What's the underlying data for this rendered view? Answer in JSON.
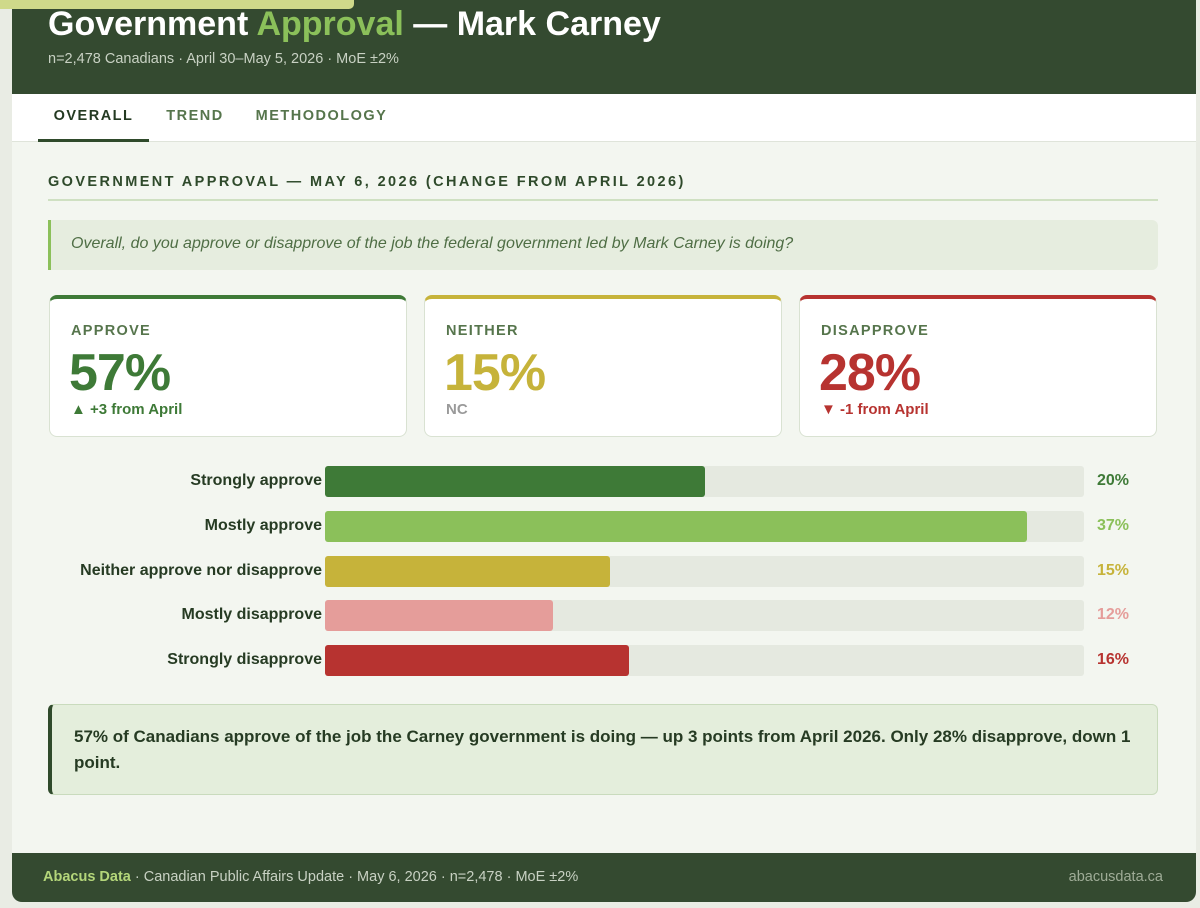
{
  "header": {
    "title_pre": "Government ",
    "title_highlight": "Approval",
    "title_post": " — Mark Carney",
    "subtitle": "n=2,478 Canadians · April 30–May 5, 2026 · MoE ±2%"
  },
  "tabs": [
    {
      "label": "OVERALL",
      "active": true
    },
    {
      "label": "TREND",
      "active": false
    },
    {
      "label": "METHODOLOGY",
      "active": false
    }
  ],
  "section_title": "GOVERNMENT APPROVAL — MAY 6, 2026 (CHANGE FROM APRIL 2026)",
  "question": "Overall, do you approve or disapprove of the job the federal government led by Mark Carney is doing?",
  "stats": [
    {
      "label": "APPROVE",
      "value": "57%",
      "change": "▲ +3 from April",
      "color": "#3e7a37",
      "change_color": "#3e7a37"
    },
    {
      "label": "NEITHER",
      "value": "15%",
      "change": "NC",
      "color": "#c6b33a",
      "change_color": "#9a9a9a"
    },
    {
      "label": "DISAPPROVE",
      "value": "28%",
      "change": "▼ -1 from April",
      "color": "#b73330",
      "change_color": "#b73330"
    }
  ],
  "chart_data": {
    "type": "bar",
    "orientation": "horizontal",
    "categories": [
      "Strongly approve",
      "Mostly approve",
      "Neither approve nor disapprove",
      "Mostly disapprove",
      "Strongly disapprove"
    ],
    "values": [
      20,
      37,
      15,
      12,
      16
    ],
    "value_labels": [
      "20%",
      "37%",
      "15%",
      "12%",
      "16%"
    ],
    "colors": [
      "#3e7a37",
      "#8bc05a",
      "#c6b33a",
      "#e59d9a",
      "#b73330"
    ],
    "label_colors": [
      "#3e7a37",
      "#8bc05a",
      "#c6b33a",
      "#e59d9a",
      "#b73330"
    ],
    "xlim": [
      0,
      40
    ],
    "grid": false,
    "title": "",
    "xlabel": "",
    "ylabel": ""
  },
  "summary": "57% of Canadians approve of the job the Carney government is doing — up 3 points from April 2026. Only 28% disapprove, down 1 point.",
  "footer": {
    "brand": "Abacus Data",
    "details": " · Canadian Public Affairs Update · May 6, 2026 · n=2,478 · MoE ±2%",
    "site": "abacusdata.ca"
  }
}
